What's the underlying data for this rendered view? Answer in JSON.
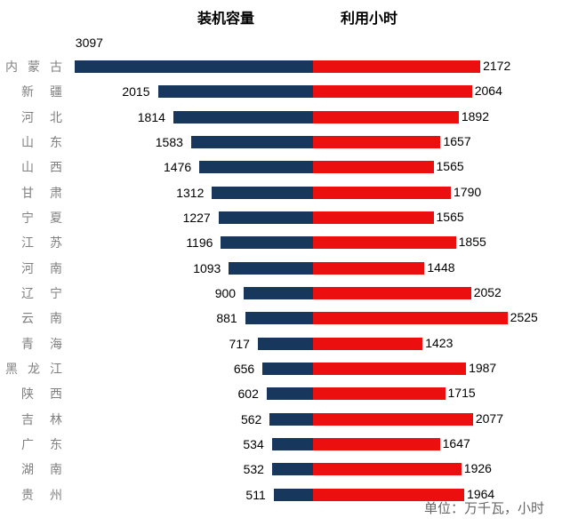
{
  "header": {
    "left_series_title": "装机容量",
    "right_series_title": "利用小时"
  },
  "footer": {
    "unit_note": "单位：万千瓦，小时"
  },
  "colors": {
    "capacity_bar": "#17375D",
    "hours_bar": "#EB0F0F",
    "province_label": "#808080",
    "value_label": "#000000",
    "title_text": "#000000",
    "unit_note_text": "#666666",
    "background": "#FFFFFF"
  },
  "chart_data": {
    "type": "bar",
    "variant": "bidirectional-tornado",
    "orientation": "horizontal",
    "title_left": "装机容量",
    "title_right": "利用小时",
    "unit_note": "单位：万千瓦，小时",
    "value_labels_shown": true,
    "axis": {
      "value_axis_hidden": true,
      "shared_center_split": true,
      "grid": false
    },
    "legend_position": "top",
    "categories": [
      "内蒙古",
      "新疆",
      "河北",
      "山东",
      "山西",
      "甘肃",
      "宁夏",
      "江苏",
      "河南",
      "辽宁",
      "云南",
      "青海",
      "黑龙江",
      "陕西",
      "吉林",
      "广东",
      "湖南",
      "贵州"
    ],
    "series": [
      {
        "name": "装机容量",
        "side": "left",
        "color": "#17375D",
        "values": [
          3097,
          2015,
          1814,
          1583,
          1476,
          1312,
          1227,
          1196,
          1093,
          900,
          881,
          717,
          656,
          602,
          562,
          534,
          532,
          511
        ]
      },
      {
        "name": "利用小时",
        "side": "right",
        "color": "#EB0F0F",
        "values": [
          2172,
          2064,
          1892,
          1657,
          1565,
          1790,
          1565,
          1855,
          1448,
          2052,
          2525,
          1423,
          1987,
          1715,
          2077,
          1647,
          1926,
          1964
        ]
      }
    ]
  }
}
